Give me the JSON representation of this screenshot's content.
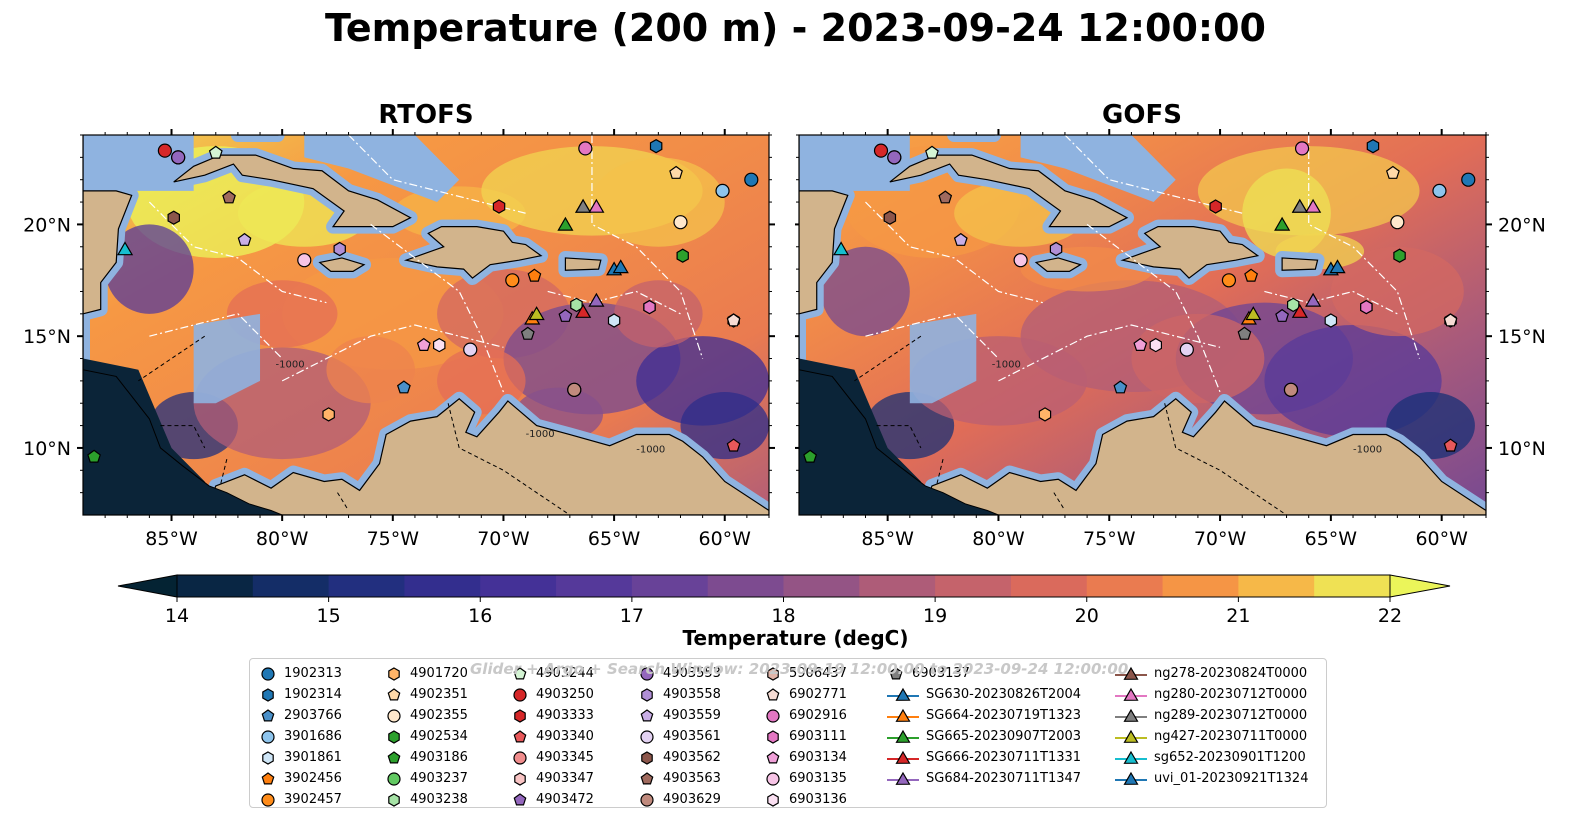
{
  "title": "Temperature (200 m) - 2023-09-24 12:00:00",
  "panels": [
    {
      "title": "RTOFS"
    },
    {
      "title": "GOFS"
    }
  ],
  "map": {
    "lon_range": [
      -89,
      -58
    ],
    "lat_range": [
      7,
      24
    ],
    "lon_ticks": [
      "85°W",
      "80°W",
      "75°W",
      "70°W",
      "65°W",
      "60°W"
    ],
    "lat_ticks": [
      "20°N",
      "15°N",
      "10°N"
    ],
    "contour_labels": [
      "-1000",
      "-1000",
      "-1000"
    ],
    "colors": {
      "land": "#d2b48c",
      "shallow_water": "#8fb3e0",
      "pacific": "#0b2438"
    }
  },
  "colorbar": {
    "label": "Temperature (degC)",
    "min": 14,
    "max": 22,
    "step": 0.5,
    "ticks": [
      "14",
      "15",
      "16",
      "17",
      "18",
      "19",
      "20",
      "21",
      "22"
    ],
    "extend": "both",
    "colormap": "thermal"
  },
  "legend": {
    "watermark": "Glider + Argo + Search Window: 2023-09-19 12:00:00 to 2023-09-24 12:00:00",
    "columns": [
      [
        {
          "label": "1902313",
          "marker": "circle",
          "color": "#1f77b4"
        },
        {
          "label": "1902314",
          "marker": "hexagon",
          "color": "#1f77b4"
        },
        {
          "label": "2903766",
          "marker": "pentagon",
          "color": "#4a90c9"
        },
        {
          "label": "3901686",
          "marker": "circle",
          "color": "#8ec4ec"
        },
        {
          "label": "3901861",
          "marker": "hexagon",
          "color": "#cfe6f7"
        },
        {
          "label": "3902456",
          "marker": "pentagon",
          "color": "#ff7f0e"
        },
        {
          "label": "3902457",
          "marker": "circle",
          "color": "#ff8c1a"
        }
      ],
      [
        {
          "label": "4901720",
          "marker": "hexagon",
          "color": "#ffb468"
        },
        {
          "label": "4902351",
          "marker": "pentagon",
          "color": "#ffd9a8"
        },
        {
          "label": "4902355",
          "marker": "circle",
          "color": "#ffe8cc"
        },
        {
          "label": "4902534",
          "marker": "hexagon",
          "color": "#2ca02c"
        },
        {
          "label": "4903186",
          "marker": "pentagon",
          "color": "#2ca02c"
        },
        {
          "label": "4903237",
          "marker": "circle",
          "color": "#62c962"
        },
        {
          "label": "4903238",
          "marker": "hexagon",
          "color": "#a6e3a6"
        }
      ],
      [
        {
          "label": "4903244",
          "marker": "pentagon",
          "color": "#d4f5d4"
        },
        {
          "label": "4903250",
          "marker": "circle",
          "color": "#d62728"
        },
        {
          "label": "4903333",
          "marker": "hexagon",
          "color": "#d62728"
        },
        {
          "label": "4903340",
          "marker": "pentagon",
          "color": "#e8585a"
        },
        {
          "label": "4903345",
          "marker": "circle",
          "color": "#f08c8c"
        },
        {
          "label": "4903347",
          "marker": "hexagon",
          "color": "#f9c4c4"
        },
        {
          "label": "4903472",
          "marker": "pentagon",
          "color": "#9467bd"
        }
      ],
      [
        {
          "label": "4903553",
          "marker": "circle",
          "color": "#9467bd"
        },
        {
          "label": "4903558",
          "marker": "hexagon",
          "color": "#b08fd6"
        },
        {
          "label": "4903559",
          "marker": "pentagon",
          "color": "#c9aee6"
        },
        {
          "label": "4903561",
          "marker": "circle",
          "color": "#e3d2f2"
        },
        {
          "label": "4903562",
          "marker": "hexagon",
          "color": "#8c564b"
        },
        {
          "label": "4903563",
          "marker": "pentagon",
          "color": "#a06a5e"
        },
        {
          "label": "4903629",
          "marker": "circle",
          "color": "#c08a7d"
        }
      ],
      [
        {
          "label": "5906437",
          "marker": "hexagon",
          "color": "#e0b4a8"
        },
        {
          "label": "6902771",
          "marker": "pentagon",
          "color": "#f6dcd4"
        },
        {
          "label": "6902916",
          "marker": "circle",
          "color": "#e377c2"
        },
        {
          "label": "6903111",
          "marker": "hexagon",
          "color": "#e377c2"
        },
        {
          "label": "6903134",
          "marker": "pentagon",
          "color": "#f0a0d8"
        },
        {
          "label": "6903135",
          "marker": "circle",
          "color": "#f7c4e6"
        },
        {
          "label": "6903136",
          "marker": "hexagon",
          "color": "#fbe0f2"
        }
      ],
      [
        {
          "label": "6903137",
          "marker": "pentagon",
          "color": "#7f7f7f"
        },
        {
          "label": "SG630-20230826T2004",
          "marker": "triangle-line",
          "color": "#1f77b4"
        },
        {
          "label": "SG664-20230719T1323",
          "marker": "triangle-line",
          "color": "#ff7f0e"
        },
        {
          "label": "SG665-20230907T2003",
          "marker": "triangle-line",
          "color": "#2ca02c"
        },
        {
          "label": "SG666-20230711T1331",
          "marker": "triangle-line",
          "color": "#d62728"
        },
        {
          "label": "SG684-20230711T1347",
          "marker": "triangle-line",
          "color": "#9467bd"
        }
      ],
      [
        {
          "label": "ng278-20230824T0000",
          "marker": "triangle-line",
          "color": "#8c564b"
        },
        {
          "label": "ng280-20230712T0000",
          "marker": "triangle-line",
          "color": "#e377c2"
        },
        {
          "label": "ng289-20230712T0000",
          "marker": "triangle-line",
          "color": "#7f7f7f"
        },
        {
          "label": "ng427-20230711T0000",
          "marker": "triangle-line",
          "color": "#bcbd22"
        },
        {
          "label": "sg652-20230901T1200",
          "marker": "triangle-line",
          "color": "#17becf"
        },
        {
          "label": "uvi_01-20230921T1324",
          "marker": "triangle-line",
          "color": "#1f77b4"
        }
      ]
    ]
  },
  "observations": [
    {
      "id": "1902313",
      "lon": -58.8,
      "lat": 22.0
    },
    {
      "id": "1902314",
      "lon": -63.1,
      "lat": 23.5
    },
    {
      "id": "2903766",
      "lon": -74.5,
      "lat": 12.7
    },
    {
      "id": "3901686",
      "lon": -60.1,
      "lat": 21.5
    },
    {
      "id": "3901861",
      "lon": -65.0,
      "lat": 15.7
    },
    {
      "id": "3902456",
      "lon": -68.6,
      "lat": 17.7
    },
    {
      "id": "3902457",
      "lon": -69.6,
      "lat": 17.5
    },
    {
      "id": "4901720",
      "lon": -77.9,
      "lat": 11.5
    },
    {
      "id": "4902351",
      "lon": -62.2,
      "lat": 22.3
    },
    {
      "id": "4902355",
      "lon": -62.0,
      "lat": 20.1
    },
    {
      "id": "4902534",
      "lon": -61.9,
      "lat": 18.6
    },
    {
      "id": "4903186",
      "lon": -88.5,
      "lat": 9.6
    },
    {
      "id": "4903237",
      "lon": -84.7,
      "lat": 23.0
    },
    {
      "id": "4903238",
      "lon": -66.7,
      "lat": 16.4
    },
    {
      "id": "4903244",
      "lon": -83.0,
      "lat": 23.2
    },
    {
      "id": "4903250",
      "lon": -85.3,
      "lat": 23.3
    },
    {
      "id": "4903333",
      "lon": -70.2,
      "lat": 20.8
    },
    {
      "id": "4903340",
      "lon": -59.6,
      "lat": 10.1
    },
    {
      "id": "4903345",
      "lon": -66.8,
      "lat": 12.6
    },
    {
      "id": "4903347",
      "lon": -63.4,
      "lat": 16.3
    },
    {
      "id": "4903472",
      "lon": -67.2,
      "lat": 15.9
    },
    {
      "id": "4903553",
      "lon": -84.7,
      "lat": 23.0
    },
    {
      "id": "4903558",
      "lon": -77.4,
      "lat": 18.9
    },
    {
      "id": "4903559",
      "lon": -81.7,
      "lat": 19.3
    },
    {
      "id": "4903561",
      "lon": -71.5,
      "lat": 14.4
    },
    {
      "id": "4903562",
      "lon": -84.9,
      "lat": 20.3
    },
    {
      "id": "4903563",
      "lon": -82.4,
      "lat": 21.2
    },
    {
      "id": "4903629",
      "lon": -66.8,
      "lat": 12.6
    },
    {
      "id": "5906437",
      "lon": -59.6,
      "lat": 15.7
    },
    {
      "id": "6902771",
      "lon": -59.6,
      "lat": 15.7
    },
    {
      "id": "6902916",
      "lon": -66.3,
      "lat": 23.4
    },
    {
      "id": "6903111",
      "lon": -63.4,
      "lat": 16.3
    },
    {
      "id": "6903134",
      "lon": -73.6,
      "lat": 14.6
    },
    {
      "id": "6903135",
      "lon": -79.0,
      "lat": 18.4
    },
    {
      "id": "6903136",
      "lon": -72.9,
      "lat": 14.6
    },
    {
      "id": "6903137",
      "lon": -68.9,
      "lat": 15.1
    },
    {
      "id": "SG630",
      "lon": -65.0,
      "lat": 18.0
    },
    {
      "id": "SG664",
      "lon": -68.7,
      "lat": 15.8
    },
    {
      "id": "SG665",
      "lon": -67.2,
      "lat": 20.0
    },
    {
      "id": "SG666",
      "lon": -66.4,
      "lat": 16.1
    },
    {
      "id": "SG684",
      "lon": -65.8,
      "lat": 16.6
    },
    {
      "id": "ng278",
      "lon": -66.4,
      "lat": 20.8
    },
    {
      "id": "ng280",
      "lon": -65.8,
      "lat": 20.8
    },
    {
      "id": "ng289",
      "lon": -66.4,
      "lat": 20.8
    },
    {
      "id": "ng427",
      "lon": -68.5,
      "lat": 16.0
    },
    {
      "id": "sg652",
      "lon": -87.1,
      "lat": 18.9
    },
    {
      "id": "uvi_01",
      "lon": -64.7,
      "lat": 18.1
    }
  ]
}
